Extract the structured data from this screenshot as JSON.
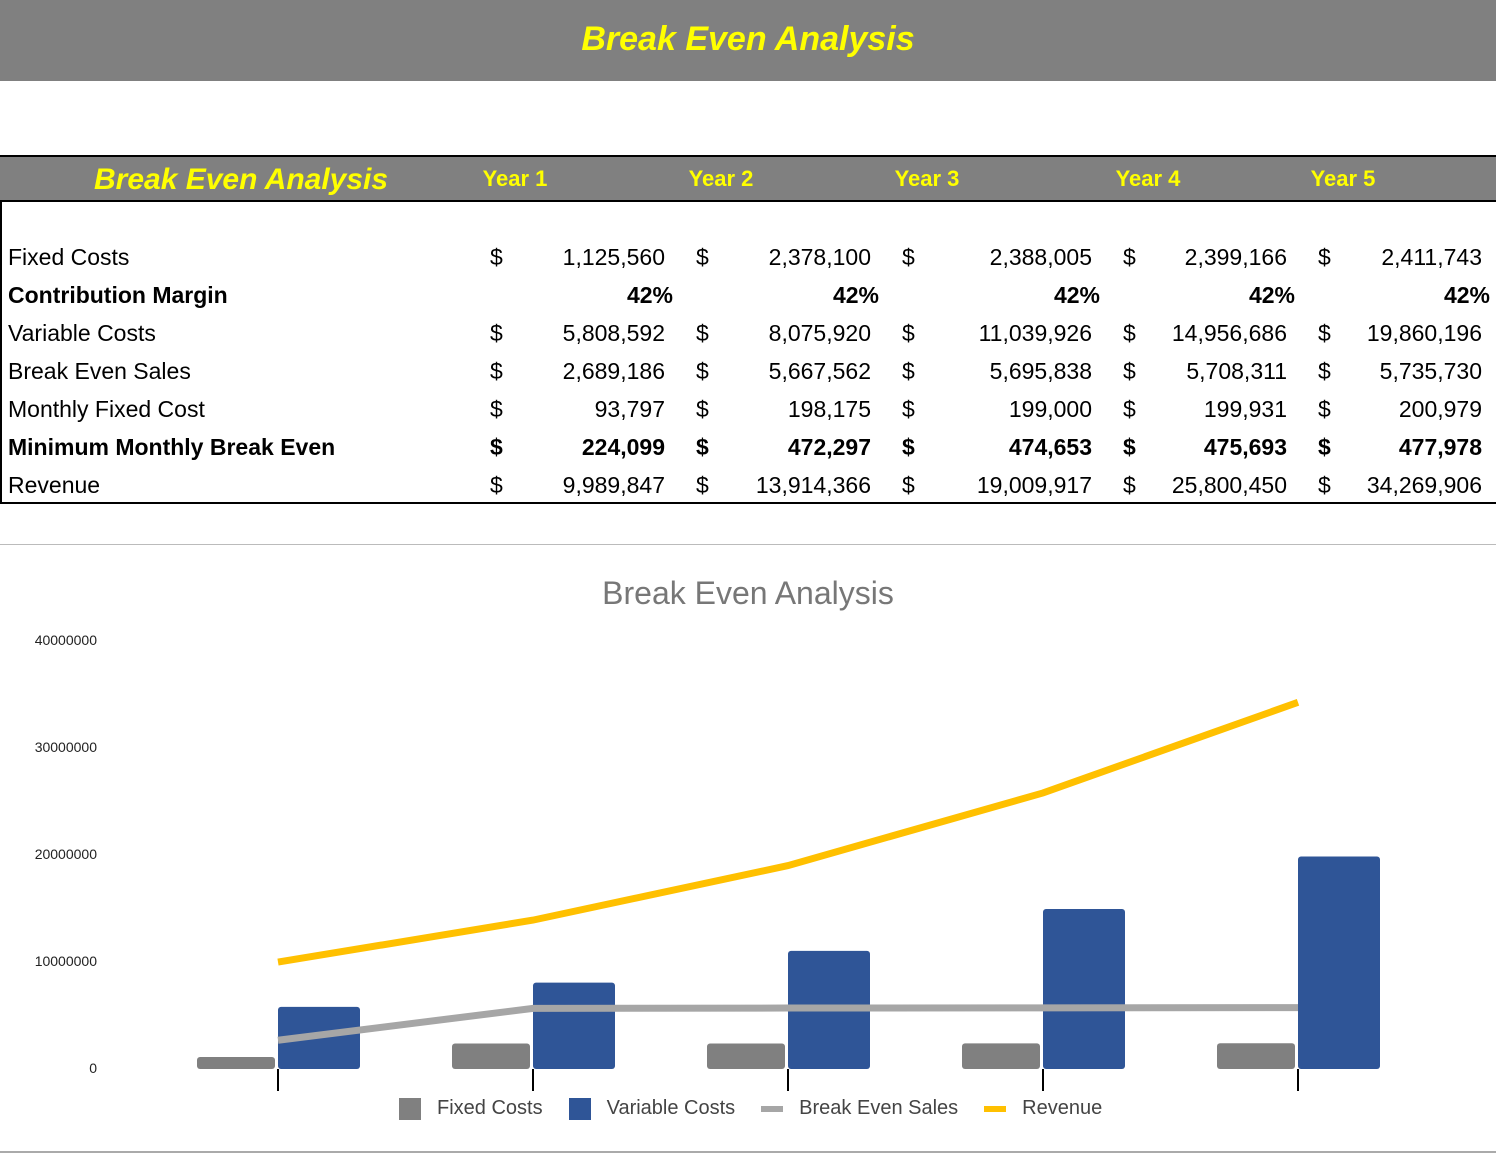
{
  "banner": {
    "title": "Break Even Analysis"
  },
  "table": {
    "title": "Break Even Analysis",
    "years": [
      "Year 1",
      "Year 2",
      "Year 3",
      "Year 4",
      "Year 5"
    ],
    "rows": [
      {
        "label": "Fixed Costs",
        "bold": false,
        "currency": "$",
        "values": [
          "1,125,560",
          "2,378,100",
          "2,388,005",
          "2,399,166",
          "2,411,743"
        ]
      },
      {
        "label": "Contribution Margin",
        "bold": true,
        "currency": "",
        "values": [
          "42%",
          "42%",
          "42%",
          "42%",
          "42%"
        ]
      },
      {
        "label": "Variable Costs",
        "bold": false,
        "currency": "$",
        "values": [
          "5,808,592",
          "8,075,920",
          "11,039,926",
          "14,956,686",
          "19,860,196"
        ]
      },
      {
        "label": "Break Even Sales",
        "bold": false,
        "currency": "$",
        "values": [
          "2,689,186",
          "5,667,562",
          "5,695,838",
          "5,708,311",
          "5,735,730"
        ]
      },
      {
        "label": "Monthly Fixed Cost",
        "bold": false,
        "currency": "$",
        "values": [
          "93,797",
          "198,175",
          "199,000",
          "199,931",
          "200,979"
        ]
      },
      {
        "label": "Minimum Monthly Break Even",
        "bold": true,
        "currency": "$",
        "values": [
          "224,099",
          "472,297",
          "474,653",
          "475,693",
          "477,978"
        ]
      },
      {
        "label": "Revenue",
        "bold": false,
        "currency": "$",
        "values": [
          "9,989,847",
          "13,914,366",
          "19,009,917",
          "25,800,450",
          "34,269,906"
        ]
      }
    ]
  },
  "chart_data": {
    "type": "bar",
    "title": "Break Even Analysis",
    "categories": [
      "",
      "",
      "",
      "",
      ""
    ],
    "ylim": [
      0,
      40000000
    ],
    "yticks": [
      "0",
      "10000000",
      "20000000",
      "30000000",
      "40000000"
    ],
    "grid": false,
    "legend": "bottom",
    "series": [
      {
        "name": "Fixed Costs",
        "type": "bar",
        "color": "#808080",
        "values": [
          1125560,
          2378100,
          2388005,
          2399166,
          2411743
        ]
      },
      {
        "name": "Variable Costs",
        "type": "bar",
        "color": "#2f5597",
        "values": [
          5808592,
          8075920,
          11039926,
          14956686,
          19860196
        ]
      },
      {
        "name": "Break Even Sales",
        "type": "line",
        "color": "#a6a6a6",
        "values": [
          2689186,
          5667562,
          5695838,
          5708311,
          5735730
        ]
      },
      {
        "name": "Revenue",
        "type": "line",
        "color": "#ffc000",
        "values": [
          9989847,
          13914366,
          19009917,
          25800450,
          34269906
        ]
      }
    ]
  }
}
